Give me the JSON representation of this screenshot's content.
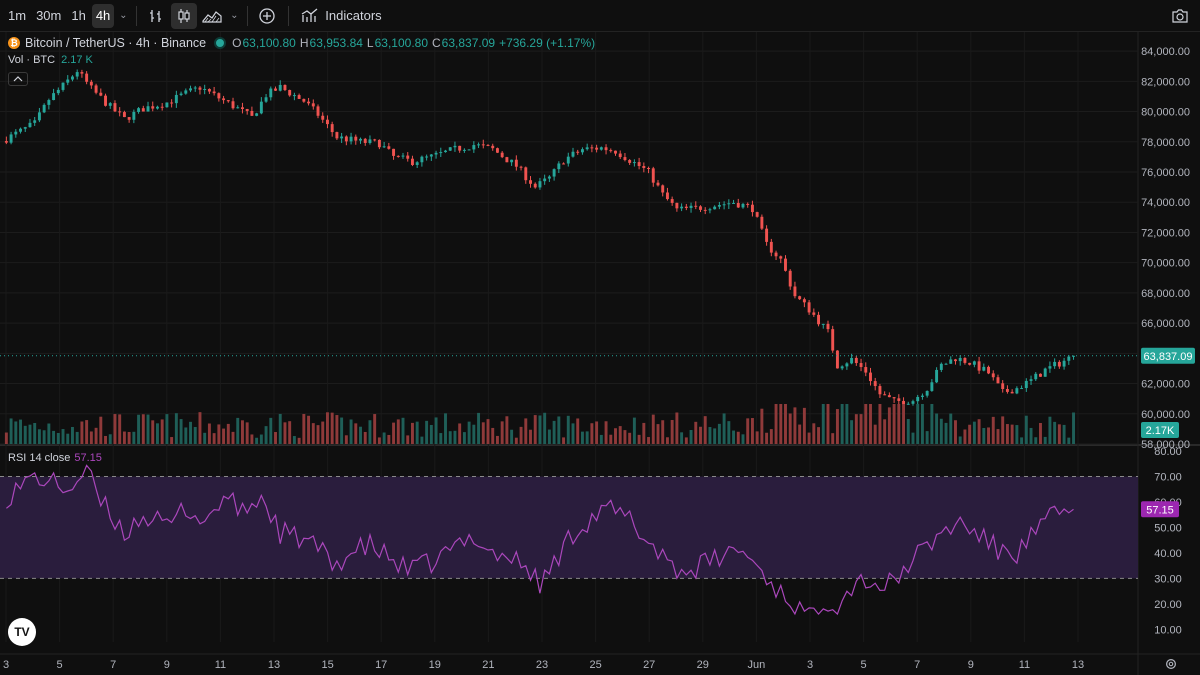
{
  "toolbar": {
    "intervals": [
      {
        "label": "1m",
        "active": false
      },
      {
        "label": "30m",
        "active": false
      },
      {
        "label": "1h",
        "active": false
      },
      {
        "label": "4h",
        "active": true
      }
    ],
    "indicators_label": "Indicators",
    "icons": [
      "bar-style-icon",
      "candlestick-icon",
      "area-chart-icon",
      "add-compare-icon",
      "indicators-icon",
      "camera-icon"
    ]
  },
  "legend": {
    "symbol": "Bitcoin / TetherUS · 4h · Binance",
    "o_label": "O",
    "o": "63,100.80",
    "h_label": "H",
    "h": "63,953.84",
    "l_label": "L",
    "l": "63,100.80",
    "c_label": "C",
    "c": "63,837.09",
    "change": "+736.29 (+1.17%)",
    "vol_label": "Vol · BTC",
    "vol_value": "2.17 K"
  },
  "rsi_legend": {
    "label": "RSI 14 close",
    "value": "57.15"
  },
  "colors": {
    "up": "#26a69a",
    "down": "#ef5350",
    "rsi": "#ab47bc",
    "band": "#2a1d3d",
    "background": "#0f0f0f"
  },
  "chart_data": [
    {
      "type": "candlestick",
      "title": "Bitcoin / TetherUS · 4h · Binance",
      "price_range": [
        58000,
        85000
      ],
      "y_ticks": [
        "84,000.00",
        "82,000.00",
        "80,000.00",
        "78,000.00",
        "76,000.00",
        "74,000.00",
        "72,000.00",
        "70,000.00",
        "68,000.00",
        "66,000.00",
        "64,000.00",
        "62,000.00",
        "60,000.00",
        "58,000.00"
      ],
      "x_ticks": [
        "3",
        "5",
        "7",
        "9",
        "11",
        "13",
        "15",
        "17",
        "19",
        "21",
        "23",
        "25",
        "27",
        "29",
        "Jun",
        "3",
        "5",
        "7",
        "9",
        "11",
        "13"
      ],
      "last_price_label": "63,837.09",
      "last_price": 63837.09,
      "volume_label": "2.17K",
      "close_anchors": [
        [
          0,
          78200
        ],
        [
          6,
          79200
        ],
        [
          9,
          80800
        ],
        [
          12,
          81700
        ],
        [
          15,
          82700
        ],
        [
          18,
          81500
        ],
        [
          22,
          80300
        ],
        [
          25,
          79500
        ],
        [
          29,
          80200
        ],
        [
          34,
          80600
        ],
        [
          38,
          81200
        ],
        [
          41,
          81600
        ],
        [
          45,
          80900
        ],
        [
          49,
          80200
        ],
        [
          52,
          79600
        ],
        [
          55,
          81100
        ],
        [
          58,
          81600
        ],
        [
          63,
          80700
        ],
        [
          66,
          79800
        ],
        [
          70,
          78300
        ],
        [
          75,
          78000
        ],
        [
          79,
          77900
        ],
        [
          82,
          77000
        ],
        [
          86,
          76700
        ],
        [
          90,
          77000
        ],
        [
          95,
          77500
        ],
        [
          99,
          77800
        ],
        [
          103,
          77500
        ],
        [
          108,
          76400
        ],
        [
          112,
          75000
        ],
        [
          115,
          75600
        ],
        [
          118,
          76800
        ],
        [
          122,
          77500
        ],
        [
          126,
          77600
        ],
        [
          129,
          77400
        ],
        [
          132,
          76800
        ],
        [
          136,
          76000
        ],
        [
          139,
          74500
        ],
        [
          142,
          73500
        ],
        [
          146,
          73600
        ],
        [
          150,
          73800
        ],
        [
          154,
          74000
        ],
        [
          158,
          73600
        ],
        [
          161,
          71200
        ],
        [
          164,
          70200
        ],
        [
          167,
          67800
        ],
        [
          170,
          66900
        ],
        [
          174,
          65400
        ],
        [
          176,
          63200
        ],
        [
          179,
          63600
        ],
        [
          182,
          62800
        ],
        [
          185,
          61300
        ],
        [
          188,
          60800
        ],
        [
          192,
          60900
        ],
        [
          195,
          61700
        ],
        [
          198,
          63200
        ],
        [
          201,
          63700
        ],
        [
          204,
          63400
        ],
        [
          208,
          62700
        ],
        [
          211,
          61400
        ],
        [
          214,
          61700
        ],
        [
          217,
          62200
        ],
        [
          220,
          62900
        ],
        [
          224,
          63500
        ],
        [
          226,
          63837
        ]
      ],
      "candle_count": 227
    },
    {
      "type": "line",
      "title": "RSI 14 close",
      "y_range": [
        5,
        82
      ],
      "y_ticks": [
        "80.00",
        "70.00",
        "60.00",
        "50.00",
        "40.00",
        "30.00",
        "20.00",
        "10.00"
      ],
      "band": [
        30,
        70
      ],
      "current_value_label": "57.15",
      "rsi_anchors": [
        [
          0,
          62
        ],
        [
          6,
          70
        ],
        [
          9,
          68
        ],
        [
          13,
          65
        ],
        [
          17,
          72
        ],
        [
          20,
          60
        ],
        [
          25,
          48
        ],
        [
          29,
          55
        ],
        [
          34,
          50
        ],
        [
          38,
          58
        ],
        [
          42,
          52
        ],
        [
          46,
          62
        ],
        [
          50,
          56
        ],
        [
          54,
          62
        ],
        [
          58,
          48
        ],
        [
          63,
          45
        ],
        [
          66,
          42
        ],
        [
          69,
          35
        ],
        [
          73,
          40
        ],
        [
          77,
          43
        ],
        [
          81,
          38
        ],
        [
          85,
          33
        ],
        [
          90,
          36
        ],
        [
          95,
          42
        ],
        [
          99,
          47
        ],
        [
          103,
          40
        ],
        [
          107,
          38
        ],
        [
          111,
          33
        ],
        [
          113,
          27
        ],
        [
          116,
          36
        ],
        [
          120,
          48
        ],
        [
          124,
          54
        ],
        [
          128,
          57
        ],
        [
          132,
          53
        ],
        [
          136,
          44
        ],
        [
          140,
          38
        ],
        [
          143,
          32
        ],
        [
          147,
          35
        ],
        [
          151,
          38
        ],
        [
          155,
          42
        ],
        [
          159,
          35
        ],
        [
          163,
          26
        ],
        [
          167,
          20
        ],
        [
          170,
          14
        ],
        [
          173,
          22
        ],
        [
          176,
          20
        ],
        [
          179,
          27
        ],
        [
          182,
          30
        ],
        [
          185,
          27
        ],
        [
          188,
          28
        ],
        [
          191,
          36
        ],
        [
          195,
          42
        ],
        [
          198,
          48
        ],
        [
          202,
          52
        ],
        [
          206,
          47
        ],
        [
          210,
          41
        ],
        [
          214,
          40
        ],
        [
          218,
          48
        ],
        [
          222,
          55
        ],
        [
          226,
          57.15
        ]
      ]
    }
  ]
}
